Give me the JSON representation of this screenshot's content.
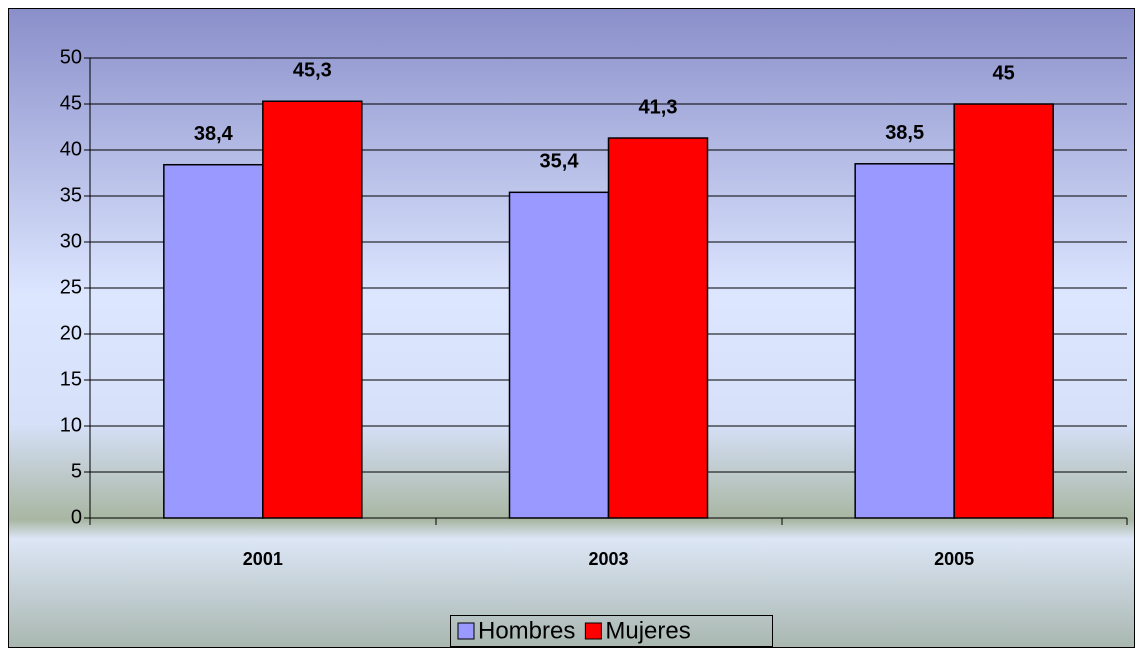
{
  "chart_data": {
    "type": "bar",
    "categories": [
      "2001",
      "2003",
      "2005"
    ],
    "series": [
      {
        "name": "Hombres",
        "color": "#9999ff",
        "values": [
          38.4,
          35.4,
          38.5
        ],
        "value_labels": [
          "38,4",
          "35,4",
          "38,5"
        ]
      },
      {
        "name": "Mujeres",
        "color": "#ff0000",
        "values": [
          45.3,
          41.3,
          45
        ],
        "value_labels": [
          "45,3",
          "41,3",
          "45"
        ]
      }
    ],
    "ylim": [
      0,
      50
    ],
    "yticks": [
      0,
      5,
      10,
      15,
      20,
      25,
      30,
      35,
      40,
      45,
      50
    ],
    "grid": true,
    "legend": "bottom"
  }
}
